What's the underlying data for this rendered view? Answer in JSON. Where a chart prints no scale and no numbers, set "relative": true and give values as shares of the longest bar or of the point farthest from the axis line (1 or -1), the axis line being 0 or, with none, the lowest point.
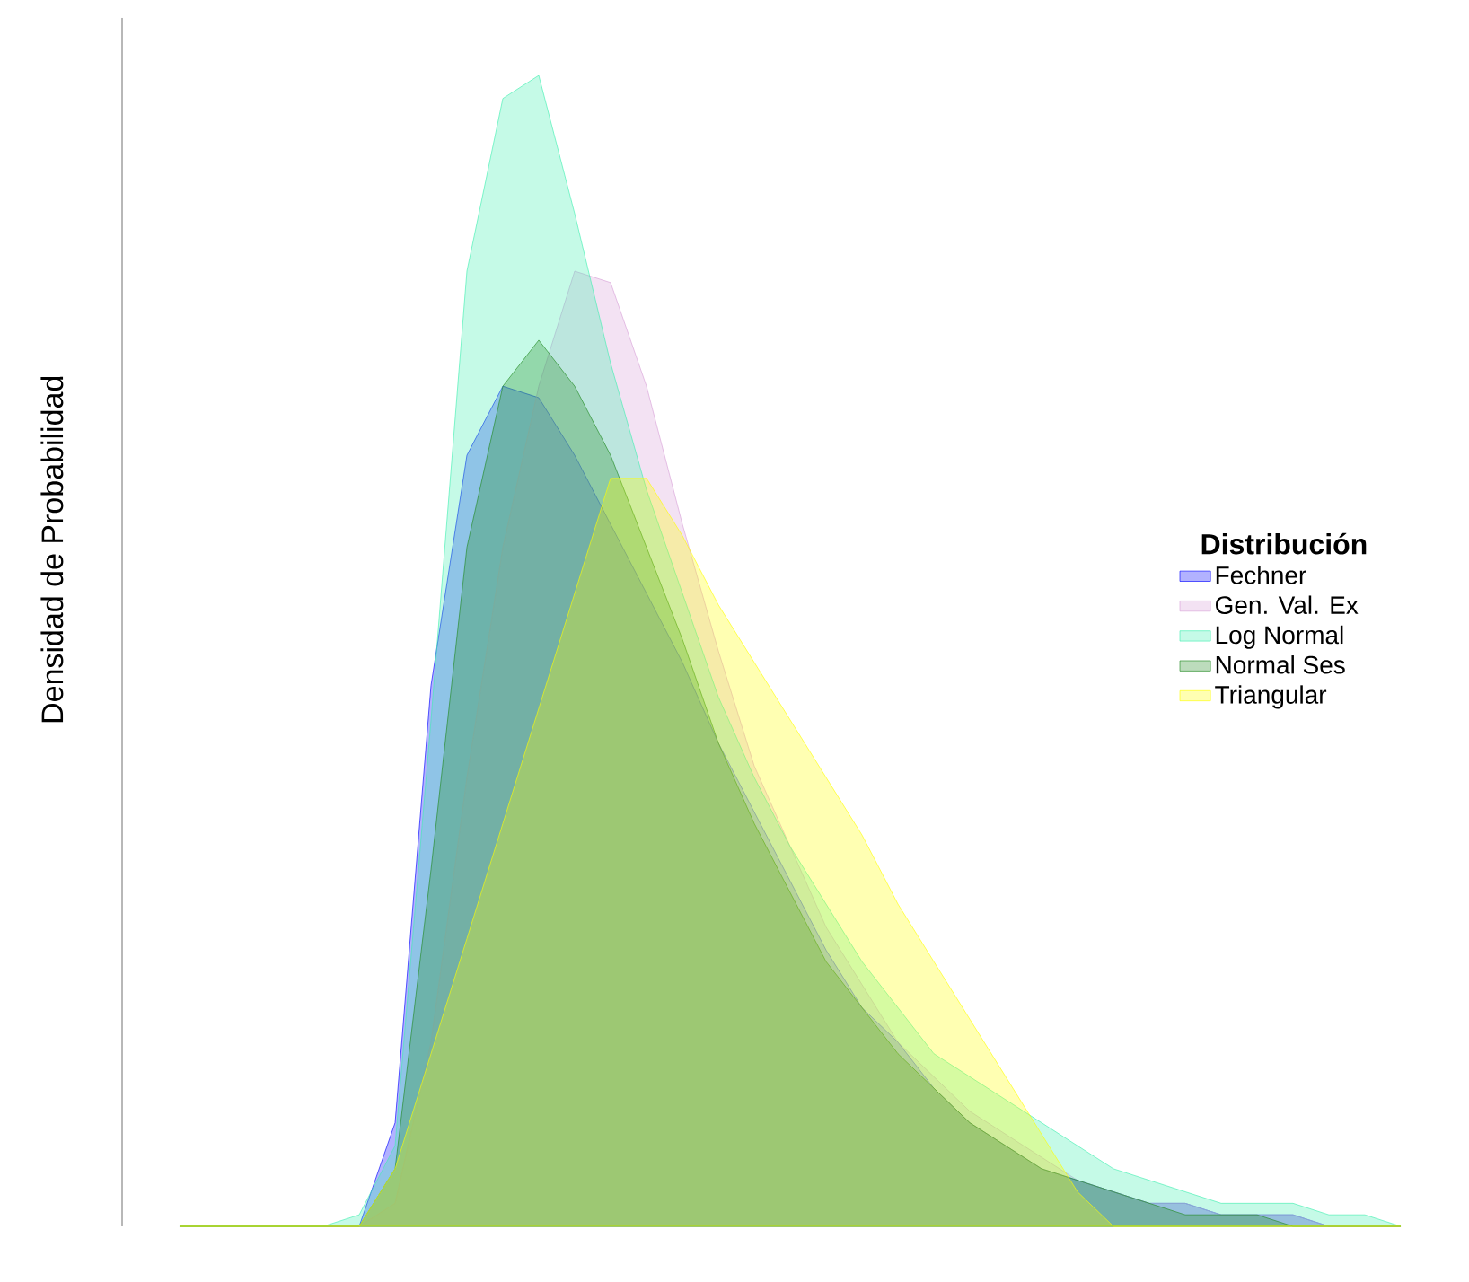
{
  "chart_data": {
    "type": "area",
    "relative": true,
    "ylabel": "Densidad de Probabilidad",
    "legend_title": "Distribución",
    "legend": "right",
    "categories": [
      null,
      null,
      null,
      null,
      null,
      null,
      null,
      null,
      null,
      null,
      null,
      null,
      null,
      null,
      null,
      null,
      null,
      null,
      null,
      null,
      null,
      null,
      null,
      null,
      null,
      null,
      null,
      null,
      null,
      null,
      null,
      null,
      null,
      null,
      null
    ],
    "series": [
      {
        "name": "Fechner",
        "color": "#0000ff",
        "values": [
          0,
          0,
          0,
          0,
          0,
          0,
          0.09,
          0.47,
          0.67,
          0.73,
          0.72,
          0.67,
          0.61,
          0.55,
          0.49,
          0.42,
          0.36,
          0.3,
          0.24,
          0.19,
          0.16,
          0.12,
          0.09,
          0.07,
          0.05,
          0.04,
          0.03,
          0.02,
          0.02,
          0.01,
          0.01,
          0.01,
          0,
          0,
          0
        ]
      },
      {
        "name": "Gen. Val. Ex",
        "color": "#d8a0d8",
        "values": [
          0,
          0,
          0,
          0,
          0,
          0,
          0.02,
          0.16,
          0.39,
          0.59,
          0.73,
          0.83,
          0.82,
          0.73,
          0.61,
          0.5,
          0.4,
          0.33,
          0.26,
          0.21,
          0.16,
          0.13,
          0.1,
          0.08,
          0.06,
          0.04,
          0.03,
          0.02,
          0.02,
          0.01,
          0.01,
          0.01,
          0,
          0,
          0
        ]
      },
      {
        "name": "Log Normal",
        "color": "#40f0b0",
        "values": [
          0,
          0,
          0,
          0,
          0,
          0.01,
          0.07,
          0.44,
          0.83,
          0.98,
          1.0,
          0.88,
          0.75,
          0.64,
          0.55,
          0.46,
          0.39,
          0.33,
          0.28,
          0.23,
          0.19,
          0.15,
          0.13,
          0.11,
          0.09,
          0.07,
          0.05,
          0.04,
          0.03,
          0.02,
          0.02,
          0.02,
          0.01,
          0.01,
          0
        ]
      },
      {
        "name": "Normal Ses",
        "color": "#228b22",
        "values": [
          0,
          0,
          0,
          0,
          0,
          0,
          0.05,
          0.31,
          0.59,
          0.73,
          0.77,
          0.73,
          0.67,
          0.59,
          0.51,
          0.42,
          0.35,
          0.29,
          0.23,
          0.19,
          0.15,
          0.12,
          0.09,
          0.07,
          0.05,
          0.04,
          0.03,
          0.02,
          0.01,
          0.01,
          0.01,
          0,
          0,
          0,
          0
        ]
      },
      {
        "name": "Triangular",
        "color": "#ffff00",
        "values": [
          0,
          0,
          0,
          0,
          0,
          0,
          0.05,
          0.15,
          0.25,
          0.35,
          0.45,
          0.55,
          0.65,
          0.65,
          0.6,
          0.54,
          0.49,
          0.44,
          0.39,
          0.34,
          0.28,
          0.23,
          0.18,
          0.13,
          0.08,
          0.03,
          0,
          0,
          0,
          0,
          0,
          0,
          0,
          0,
          0
        ]
      }
    ]
  }
}
